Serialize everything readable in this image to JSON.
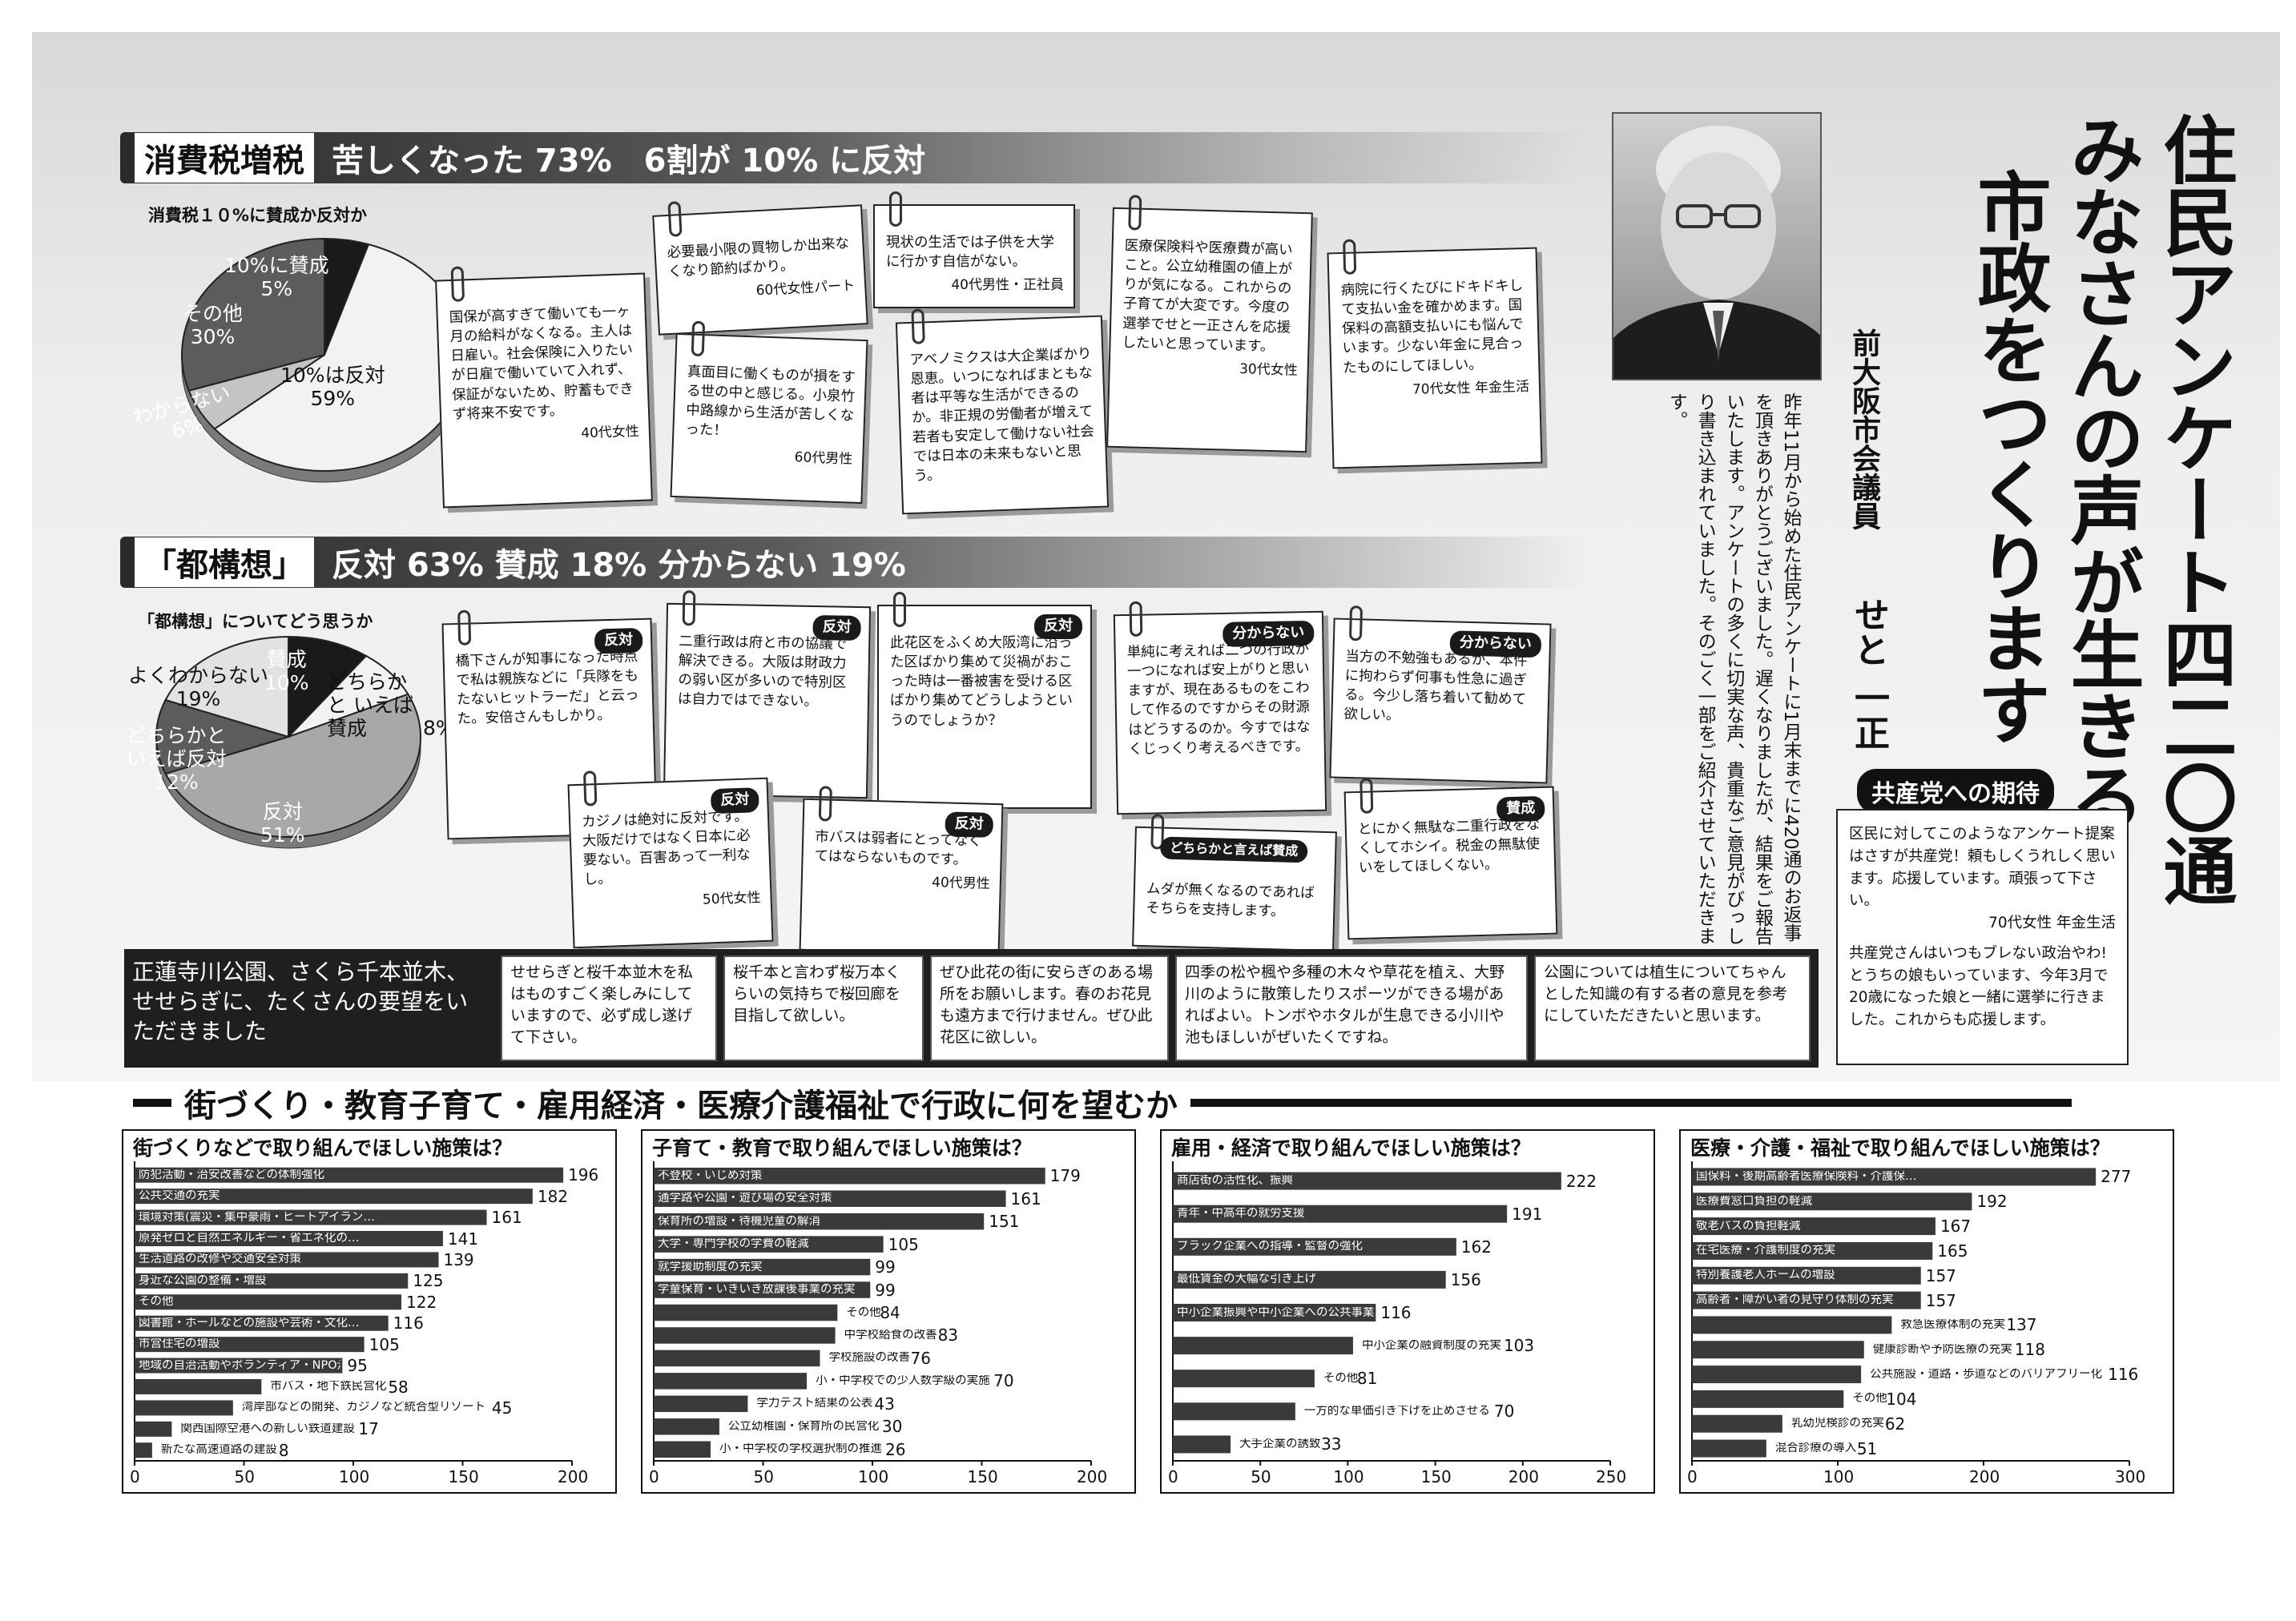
{
  "shouhi": {
    "tag": "消費税増税",
    "headline": "苦しくなった 73%　6割が 10% に反対",
    "question": "消費税１０%に賛成か反対か",
    "pie": [
      {
        "label": "10%に賛成",
        "value": 5
      },
      {
        "label": "10%は反対",
        "value": 59
      },
      {
        "label": "わからない",
        "value": 6
      },
      {
        "label": "その他",
        "value": 30
      }
    ],
    "pie_colors": [
      "#1a1a1a",
      "#f2f2f2",
      "#c4c4c4",
      "#5c5c5c"
    ],
    "pie_text": [
      {
        "l": "10%に賛成",
        "p": "5%"
      },
      {
        "l": "10%は反対",
        "p": "59%"
      },
      {
        "l": "わからない",
        "p": "6%"
      },
      {
        "l": "その他",
        "p": "30%"
      }
    ],
    "notes": [
      {
        "text": "国保が高すぎて働いても一ヶ月の給料がなくなる。主人は日雇い。社会保険に入りたいが日雇で働いていて入れず、保証がないため、貯蓄もできず将来不安です。",
        "who": "40代女性"
      },
      {
        "text": "必要最小限の買物しか出来なくなり節約ばかり。",
        "who": "60代女性パート"
      },
      {
        "text": "真面目に働くものが損をする世の中と感じる。小泉竹中路線から生活が苦しくなった！",
        "who": "60代男性"
      },
      {
        "text": "現状の生活では子供を大学に行かす自信がない。",
        "who": "40代男性・正社員"
      },
      {
        "text": "アベノミクスは大企業ばかり恩恵。いつになればまともな者は平等な生活ができるのか。非正規の労働者が増えて若者も安定して働けない社会では日本の未来もないと思う。",
        "who": ""
      },
      {
        "text": "医療保険料や医療費が高いこと。公立幼稚園の値上がりが気になる。これからの子育てが大変です。今度の選挙でせと一正さんを応援したいと思っています。",
        "who": "30代女性"
      },
      {
        "text": "病院に行くたびにドキドキして支払い金を確かめます。国保料の高額支払いにも悩んでいます。少ない年金に見合ったものにしてほしい。",
        "who": "70代女性 年金生活"
      }
    ]
  },
  "toukousou": {
    "tag": "「都構想」",
    "headline": "反対 63% 賛成 18% 分からない 19%",
    "question": "「都構想」についてどう思うか",
    "pie": [
      {
        "label": "賛成",
        "value": 10
      },
      {
        "label": "どちらかといえば賛成",
        "value": 8
      },
      {
        "label": "反対",
        "value": 51
      },
      {
        "label": "どちらかといえば反対",
        "value": 12
      },
      {
        "label": "よくわからない",
        "value": 19
      }
    ],
    "pie_colors": [
      "#1a1a1a",
      "#f2f2f2",
      "#a8a8a8",
      "#5c5c5c",
      "#e2e2e2"
    ],
    "pie_text": [
      {
        "l": "賛成",
        "p": "10%"
      },
      {
        "l": "どちらかと いえば賛成",
        "p": "8%"
      },
      {
        "l": "反対",
        "p": "51%"
      },
      {
        "l": "どちらかと いえば反対",
        "p": "12%"
      },
      {
        "l": "よくわからない",
        "p": "19%"
      }
    ],
    "notes": [
      {
        "badge": "反対",
        "text": "橋下さんが知事になった時点で私は親族などに「兵隊をもたないヒットラーだ」と云った。安倍さんもしかり。",
        "who": ""
      },
      {
        "badge": "反対",
        "text": "二重行政は府と市の協議で解決できる。大阪は財政力の弱い区が多いので特別区は自力ではできない。",
        "who": ""
      },
      {
        "badge": "反対",
        "text": "カジノは絶対に反対です。大阪だけではなく日本に必要ない。百害あって一利なし。",
        "who": "50代女性"
      },
      {
        "badge": "反対",
        "text": "此花区をふくめ大阪湾に沿った区ばかり集めて災禍がおこった時は一番被害を受ける区ばかり集めてどうしようというのでしょうか？",
        "who": ""
      },
      {
        "badge": "反対",
        "text": "市バスは弱者にとってなくてはならないものです。",
        "who": "40代男性"
      },
      {
        "badge": "分からない",
        "text": "単純に考えれば二つの行政が一つになれば安上がりと思いますが、現在あるものをこわして作るのですからその財源はどうするのか。今すではなくじっくり考えるべきです。",
        "who": ""
      },
      {
        "badge": "どちらかと言えば賛成",
        "text": "ムダが無くなるのであればそちらを支持します。",
        "who": ""
      },
      {
        "badge": "分からない",
        "text": "当方の不勉強もあるが、本件に拘わらず何事も性急に過ぎる。今少し落ち着いて勧めて欲しい。",
        "who": ""
      },
      {
        "badge": "賛成",
        "text": "とにかく無駄な二重行政をなくしてホシイ。税金の無駄使いをしてほしくない。",
        "who": ""
      }
    ]
  },
  "title": {
    "line1": "住民アンケート四二〇通",
    "line2": "みなさんの声が生きる",
    "line3": "市政をつくります",
    "role": "前大阪市会議員",
    "name": "せと 一正",
    "intro": "昨年11月から始めた住民アンケートに1月末までに420通のお返事を頂きありがとうございました。遅くなりましたが、結果をご報告いたします。アンケートの多くに切実な声、貴重なご意見がびっしり書き込まれていました。そのごく一部をご紹介させていただきます。"
  },
  "kyousan": {
    "title": "共産党への期待",
    "p1": "区民に対してこのようなアンケート提案はさすが共産党！頼もしくうれしく思います。応援しています。頑張って下さい。",
    "p1_who": "70代女性 年金生活",
    "p2": "共産党さんはいつもブレない政治やわ!とうちの娘もいっています、今年3月で20歳になった娘と一緒に選挙に行きました。これからも応援します。"
  },
  "park": {
    "lead": "正蓮寺川公園、さくら千本並木、せせらぎに、たくさんの要望をいただきました",
    "cards": [
      "せせらぎと桜千本並木を私はものすごく楽しみにしていますので、必ず成し遂げて下さい。",
      "桜千本と言わず桜万本くらいの気持ちで桜回廊を目指して欲しい。",
      "ぜひ此花の街に安らぎのある場所をお願いします。春のお花見も遠方まで行けません。ぜひ此花区に欲しい。",
      "四季の松や楓や多種の木々や草花を植え、大野川のように散策したりスポーツができる場があればよい。トンボやホタルが生息できる小川や池もほしいがぜいたくですね。",
      "公園については植生についてちゃんとした知識の有する者の意見を参考にしていただきたいと思います。"
    ]
  },
  "main_heading": "街づくり・教育子育て・雇用経済・医療介護福祉で行政に何を望むか",
  "chart_data": [
    {
      "type": "bar",
      "title": "街づくりなどで取り組んでほしい施策は？",
      "categories": [
        "防犯活動・治安改善などの体制強化",
        "公共交通の充実",
        "環境対策(震災・集中豪雨・ヒートアイラン…",
        "原発ゼロと自然エネルギー・省エネ化の…",
        "生活道路の改修や交通安全対策",
        "身近な公園の整備・増設",
        "その他",
        "図書館・ホールなどの施設や芸術・文化…",
        "市営住宅の増設",
        "地域の自治活動やボランティア・NPO活動…",
        "市バス・地下鉄民営化",
        "湾岸部などの開発、カジノなど統合型リゾート",
        "関西国際空港への新しい鉄道建設",
        "新たな高速道路の建設"
      ],
      "values": [
        196,
        182,
        161,
        141,
        139,
        125,
        122,
        116,
        105,
        95,
        58,
        45,
        17,
        8
      ],
      "xlim": [
        0,
        200
      ],
      "ticks": [
        0,
        50,
        100,
        150,
        200
      ]
    },
    {
      "type": "bar",
      "title": "子育て・教育で取り組んでほしい施策は？",
      "categories": [
        "不登校・いじめ対策",
        "通学路や公園・遊び場の安全対策",
        "保育所の増設・待機児童の解消",
        "大学・専門学校の学費の軽減",
        "就学援助制度の充実",
        "学童保育・いきいき放課後事業の充実",
        "その他",
        "中学校給食の改善",
        "学校施設の改善",
        "小・中学校での少人数学級の実施",
        "学力テスト結果の公表",
        "公立幼稚園・保育所の民営化",
        "小・中学校の学校選択制の推進"
      ],
      "values": [
        179,
        161,
        151,
        105,
        99,
        99,
        84,
        83,
        76,
        70,
        43,
        30,
        26
      ],
      "xlim": [
        0,
        200
      ],
      "ticks": [
        0,
        50,
        100,
        150,
        200
      ]
    },
    {
      "type": "bar",
      "title": "雇用・経済で取り組んでほしい施策は？",
      "categories": [
        "商店街の活性化、振興",
        "青年・中高年の就労支援",
        "ブラック企業への指導・監督の強化",
        "最低賃金の大幅な引き上げ",
        "中小企業振興や中小企業への公共事業…",
        "中小企業の融資制度の充実",
        "その他",
        "一方的な単価引き下げを止めさせる",
        "大手企業の誘致"
      ],
      "values": [
        222,
        191,
        162,
        156,
        116,
        103,
        81,
        70,
        33
      ],
      "xlim": [
        0,
        250
      ],
      "ticks": [
        0,
        50,
        100,
        150,
        200,
        250
      ]
    },
    {
      "type": "bar",
      "title": "医療・介護・福祉で取り組んでほしい施策は？",
      "categories": [
        "国保料・後期高齢者医療保険料・介護保…",
        "医療費窓口負担の軽減",
        "敬老パスの負担軽減",
        "在宅医療・介護制度の充実",
        "特別養護老人ホームの増設",
        "高齢者・障がい者の見守り体制の充実",
        "救急医療体制の充実",
        "健康診断や予防医療の充実",
        "公共施設・道路・歩道などのバリアフリー化",
        "その他",
        "乳幼児検診の充実",
        "混合診療の導入"
      ],
      "values": [
        277,
        192,
        167,
        165,
        157,
        157,
        137,
        118,
        116,
        104,
        62,
        51
      ],
      "xlim": [
        0,
        300
      ],
      "ticks": [
        0,
        100,
        200,
        300
      ]
    }
  ]
}
